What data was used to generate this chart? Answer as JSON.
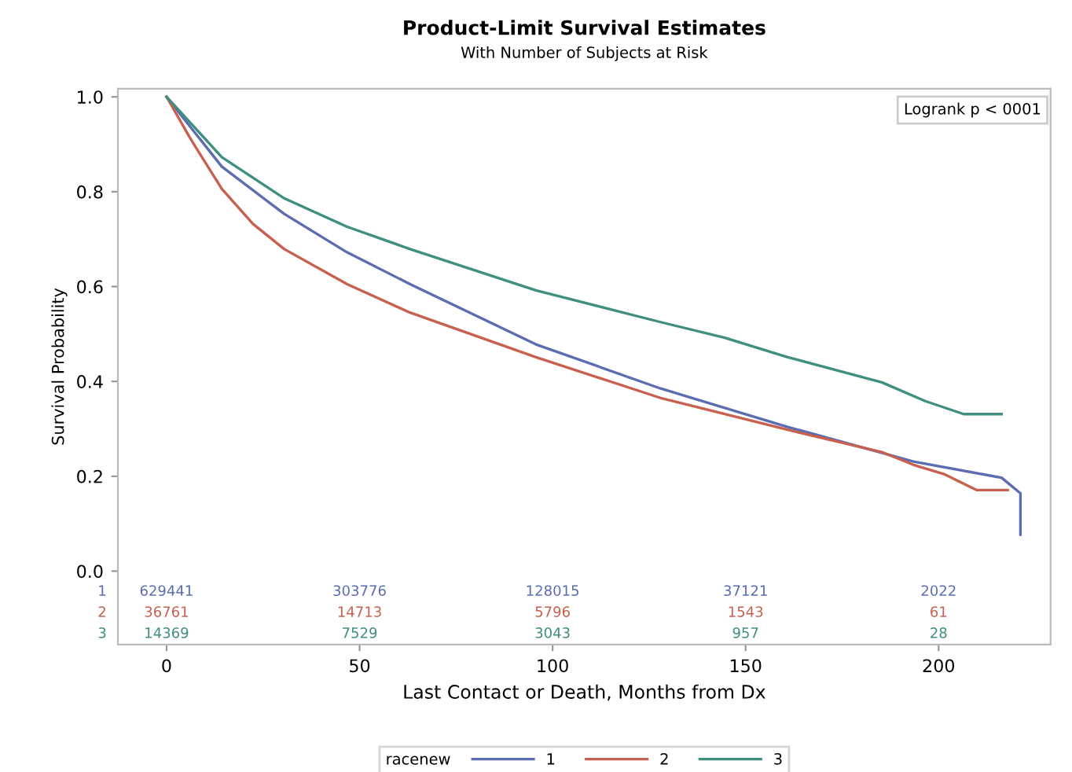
{
  "chart_data": {
    "type": "line",
    "title": "Product-Limit Survival Estimates",
    "subtitle": "With Number of Subjects at Risk",
    "xlabel": "Last Contact or Death, Months from Dx",
    "ylabel": "Survival Probability",
    "legend_title": "racenew",
    "xlim": [
      -12.6,
      229
    ],
    "ylim": [
      -0.155,
      1.017
    ],
    "xticks": [
      0,
      50,
      100,
      150,
      200
    ],
    "yticks": [
      {
        "value": 0,
        "label": "0.0"
      },
      0.2,
      0.4,
      0.6,
      0.8,
      {
        "value": 1,
        "label": "1.0"
      }
    ],
    "grid": false,
    "legend": "bottom",
    "marker": "none",
    "line_style": "solid",
    "series": [
      {
        "name": "1",
        "color": "#5b6cb0",
        "x": [
          0,
          14.3,
          30.5,
          46.8,
          63.1,
          95.7,
          128,
          160.9,
          193.5,
          216.3,
          221.2,
          221.2
        ],
        "values": [
          1,
          0.853,
          0.753,
          0.672,
          0.605,
          0.478,
          0.385,
          0.304,
          0.231,
          0.197,
          0.164,
          0.077
        ]
      },
      {
        "name": "2",
        "color": "#c8604f",
        "x": [
          0,
          6.1,
          14.3,
          22.4,
          30.5,
          46.8,
          63.1,
          95.7,
          128,
          160.9,
          185.3,
          193.5,
          201.6,
          209.8,
          217.9
        ],
        "values": [
          1,
          0.913,
          0.806,
          0.732,
          0.679,
          0.605,
          0.545,
          0.451,
          0.365,
          0.298,
          0.251,
          0.224,
          0.204,
          0.171,
          0.171
        ]
      },
      {
        "name": "3",
        "color": "#3f8f80",
        "x": [
          0,
          14.3,
          30.5,
          46.8,
          63.1,
          95.7,
          128,
          144.6,
          160.9,
          185.3,
          196.7,
          206.5,
          216.3
        ],
        "values": [
          1,
          0.873,
          0.786,
          0.726,
          0.679,
          0.592,
          0.525,
          0.492,
          0.451,
          0.398,
          0.358,
          0.331,
          0.331
        ]
      }
    ],
    "annotations": [
      "Logrank p < 0001",
      "1",
      "629441",
      "303776",
      "128015",
      "37121",
      "2022",
      "2",
      "36761",
      "14713",
      "5796",
      "1543",
      "61",
      "3",
      "14369",
      "7529",
      "3043",
      "957",
      "28"
    ]
  }
}
